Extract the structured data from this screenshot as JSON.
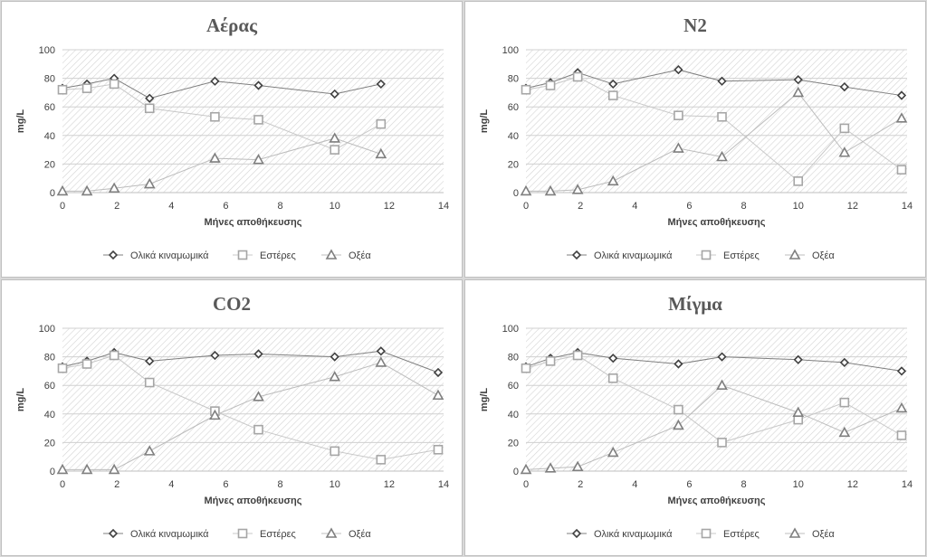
{
  "chart_data": [
    {
      "type": "line",
      "title": "Αέρας",
      "xlabel": "Μήνες αποθήκευσης",
      "ylabel": "mg/L",
      "xlim": [
        0,
        14
      ],
      "ylim": [
        0,
        100
      ],
      "xticks": [
        "0",
        "2",
        "4",
        "6",
        "8",
        "10",
        "12",
        "14"
      ],
      "yticks": [
        "0",
        "20",
        "40",
        "60",
        "80",
        "100"
      ],
      "grid": true,
      "legend": "bottom",
      "series": [
        {
          "name": "Ολικά κιναμωμικά",
          "marker": "diamond",
          "color": "#404040",
          "x": [
            0,
            0.9,
            1.9,
            3.2,
            5.6,
            7.2,
            10,
            11.7
          ],
          "y": [
            73,
            76,
            80,
            66,
            78,
            75,
            69,
            76
          ]
        },
        {
          "name": "Εστέρες",
          "marker": "square",
          "color": "#a6a6a6",
          "x": [
            0,
            0.9,
            1.9,
            3.2,
            5.6,
            7.2,
            10,
            11.7
          ],
          "y": [
            72,
            73,
            76,
            59,
            53,
            51,
            30,
            48
          ]
        },
        {
          "name": "Οξέα",
          "marker": "triangle",
          "color": "#7f7f7f",
          "x": [
            0,
            0.9,
            1.9,
            3.2,
            5.6,
            7.2,
            10,
            11.7
          ],
          "y": [
            1,
            1,
            3,
            6,
            24,
            23,
            38,
            27
          ]
        }
      ]
    },
    {
      "type": "line",
      "title": "N2",
      "xlabel": "Μήνες αποθήκευσης",
      "ylabel": "mg/L",
      "xlim": [
        0,
        14
      ],
      "ylim": [
        0,
        100
      ],
      "xticks": [
        "0",
        "2",
        "4",
        "6",
        "8",
        "10",
        "12",
        "14"
      ],
      "yticks": [
        "0",
        "20",
        "40",
        "60",
        "80",
        "100"
      ],
      "grid": true,
      "legend": "bottom",
      "series": [
        {
          "name": "Ολικά κιναμωμικά",
          "marker": "diamond",
          "color": "#404040",
          "x": [
            0,
            0.9,
            1.9,
            3.2,
            5.6,
            7.2,
            10,
            11.7,
            13.8
          ],
          "y": [
            73,
            77,
            84,
            76,
            86,
            78,
            79,
            74,
            68
          ]
        },
        {
          "name": "Εστέρες",
          "marker": "square",
          "color": "#a6a6a6",
          "x": [
            0,
            0.9,
            1.9,
            3.2,
            5.6,
            7.2,
            10,
            11.7,
            13.8
          ],
          "y": [
            72,
            75,
            81,
            68,
            54,
            53,
            8,
            45,
            16
          ]
        },
        {
          "name": "Οξέα",
          "marker": "triangle",
          "color": "#7f7f7f",
          "x": [
            0,
            0.9,
            1.9,
            3.2,
            5.6,
            7.2,
            10,
            11.7,
            13.8
          ],
          "y": [
            1,
            1,
            2,
            8,
            31,
            25,
            70,
            28,
            52
          ]
        }
      ]
    },
    {
      "type": "line",
      "title": "CO2",
      "xlabel": "Μήνες αποθήκευσης",
      "ylabel": "mg/L",
      "xlim": [
        0,
        14
      ],
      "ylim": [
        0,
        100
      ],
      "xticks": [
        "0",
        "2",
        "4",
        "6",
        "8",
        "10",
        "12",
        "14"
      ],
      "yticks": [
        "0",
        "20",
        "40",
        "60",
        "80",
        "100"
      ],
      "grid": true,
      "legend": "bottom",
      "series": [
        {
          "name": "Ολικά κιναμωμικά",
          "marker": "diamond",
          "color": "#404040",
          "x": [
            0,
            0.9,
            1.9,
            3.2,
            5.6,
            7.2,
            10,
            11.7,
            13.8
          ],
          "y": [
            73,
            77,
            83,
            77,
            81,
            82,
            80,
            84,
            69
          ]
        },
        {
          "name": "Εστέρες",
          "marker": "square",
          "color": "#a6a6a6",
          "x": [
            0,
            0.9,
            1.9,
            3.2,
            5.6,
            7.2,
            10,
            11.7,
            13.8
          ],
          "y": [
            72,
            75,
            81,
            62,
            42,
            29,
            14,
            8,
            15
          ]
        },
        {
          "name": "Οξέα",
          "marker": "triangle",
          "color": "#7f7f7f",
          "x": [
            0,
            0.9,
            1.9,
            3.2,
            5.6,
            7.2,
            10,
            11.7,
            13.8
          ],
          "y": [
            1,
            1,
            1,
            14,
            39,
            52,
            66,
            76,
            53
          ]
        }
      ]
    },
    {
      "type": "line",
      "title": "Μίγμα",
      "xlabel": "Μήνες αποθήκευσης",
      "ylabel": "mg/L",
      "xlim": [
        0,
        14
      ],
      "ylim": [
        0,
        100
      ],
      "xticks": [
        "0",
        "2",
        "4",
        "6",
        "8",
        "10",
        "12",
        "14"
      ],
      "yticks": [
        "0",
        "20",
        "40",
        "60",
        "80",
        "100"
      ],
      "grid": true,
      "legend": "bottom",
      "series": [
        {
          "name": "Ολικά κιναμωμικά",
          "marker": "diamond",
          "color": "#404040",
          "x": [
            0,
            0.9,
            1.9,
            3.2,
            5.6,
            7.2,
            10,
            11.7,
            13.8
          ],
          "y": [
            73,
            79,
            83,
            79,
            75,
            80,
            78,
            76,
            70
          ]
        },
        {
          "name": "Εστέρες",
          "marker": "square",
          "color": "#a6a6a6",
          "x": [
            0,
            0.9,
            1.9,
            3.2,
            5.6,
            7.2,
            10,
            11.7,
            13.8
          ],
          "y": [
            72,
            77,
            81,
            65,
            43,
            20,
            36,
            48,
            25
          ]
        },
        {
          "name": "Οξέα",
          "marker": "triangle",
          "color": "#7f7f7f",
          "x": [
            0,
            0.9,
            1.9,
            3.2,
            5.6,
            7.2,
            10,
            11.7,
            13.8
          ],
          "y": [
            1,
            2,
            3,
            13,
            32,
            60,
            41,
            27,
            44
          ]
        }
      ]
    }
  ]
}
